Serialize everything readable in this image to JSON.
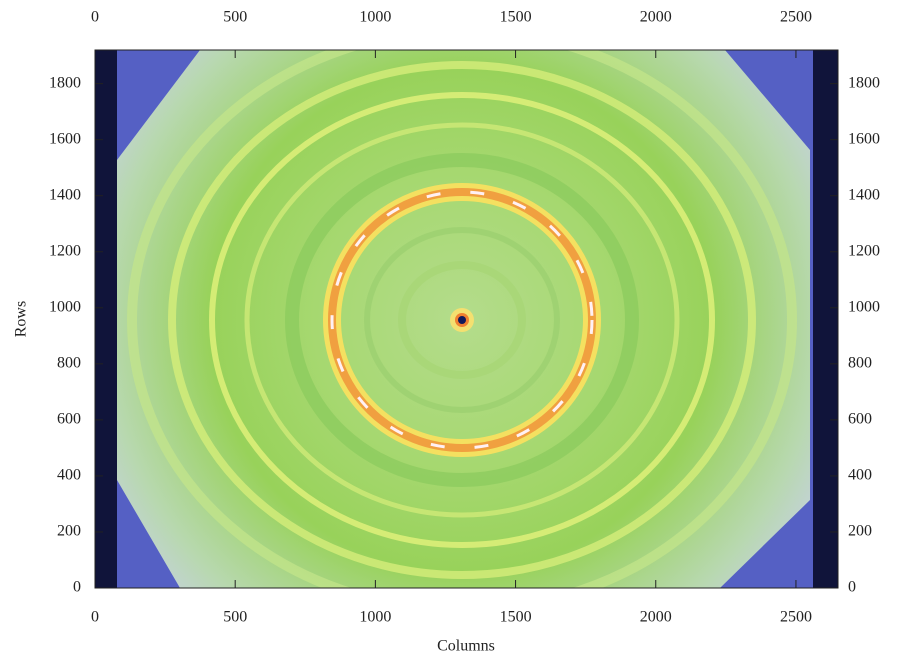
{
  "chart_data": {
    "type": "image",
    "x_label": "Columns",
    "y_label": "Rows",
    "xlim": [
      0,
      2650
    ],
    "ylim": [
      0,
      1920
    ],
    "xticks": [
      0,
      500,
      1000,
      1500,
      2000,
      2500
    ],
    "yticks": [
      0,
      200,
      400,
      600,
      800,
      1000,
      1200,
      1400,
      1600,
      1800
    ]
  }
}
